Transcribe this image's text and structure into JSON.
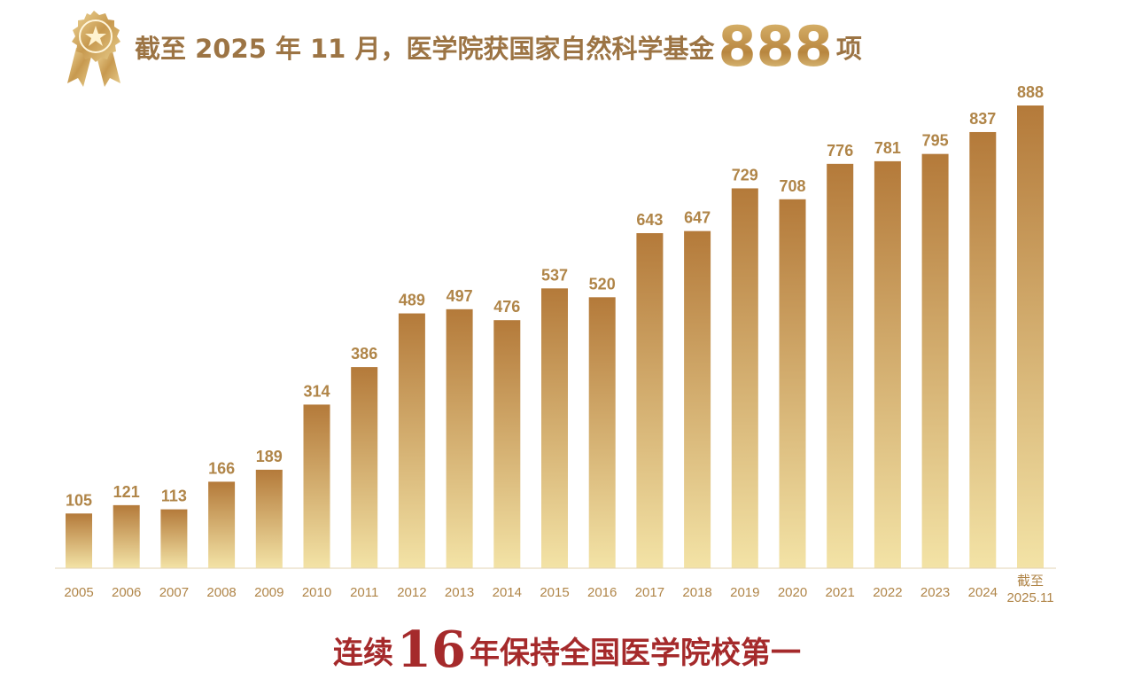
{
  "header": {
    "title_prefix": "截至 2025 年 11 月，医学院获国家自然科学基金",
    "title_number": "888",
    "title_suffix": "项",
    "icon": "medal-star-icon"
  },
  "footer": {
    "prefix": "连续",
    "number": "16",
    "suffix": "年保持全国医学院校第一"
  },
  "colors": {
    "bar_top": "#b47a3a",
    "bar_bottom": "#f3e3a6",
    "label": "#b08548",
    "title": "#9c7444",
    "footer": "#a52a2b"
  },
  "chart_data": {
    "type": "bar",
    "title": "截至 2025 年 11 月，医学院获国家自然科学基金888项",
    "xlabel": "",
    "ylabel": "",
    "categories": [
      "2005",
      "2006",
      "2007",
      "2008",
      "2009",
      "2010",
      "2011",
      "2012",
      "2013",
      "2014",
      "2015",
      "2016",
      "2017",
      "2018",
      "2019",
      "2020",
      "2021",
      "2022",
      "2023",
      "2024",
      "截至\n2025.11"
    ],
    "category_lines": [
      [
        "2005"
      ],
      [
        "2006"
      ],
      [
        "2007"
      ],
      [
        "2008"
      ],
      [
        "2009"
      ],
      [
        "2010"
      ],
      [
        "2011"
      ],
      [
        "2012"
      ],
      [
        "2013"
      ],
      [
        "2014"
      ],
      [
        "2015"
      ],
      [
        "2016"
      ],
      [
        "2017"
      ],
      [
        "2018"
      ],
      [
        "2019"
      ],
      [
        "2020"
      ],
      [
        "2021"
      ],
      [
        "2022"
      ],
      [
        "2023"
      ],
      [
        "2024"
      ],
      [
        "截至",
        "2025.11"
      ]
    ],
    "values": [
      105,
      121,
      113,
      166,
      189,
      314,
      386,
      489,
      497,
      476,
      537,
      520,
      643,
      647,
      729,
      708,
      776,
      781,
      795,
      837,
      888
    ],
    "ylim": [
      0,
      888
    ],
    "grid": false,
    "legend": "none"
  }
}
